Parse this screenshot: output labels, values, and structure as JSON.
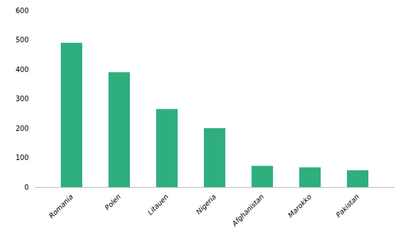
{
  "chart_data": {
    "type": "bar",
    "categories": [
      "Romania",
      "Polen",
      "Litauen",
      "Nigeria",
      "Afghanistan",
      "Marokko",
      "Pakistan"
    ],
    "values": [
      490,
      390,
      265,
      200,
      72,
      67,
      57
    ],
    "color": "#2EAF7D",
    "ylim": [
      0,
      600
    ],
    "yticks": [
      0,
      100,
      200,
      300,
      400,
      500,
      600
    ],
    "grid": false
  }
}
